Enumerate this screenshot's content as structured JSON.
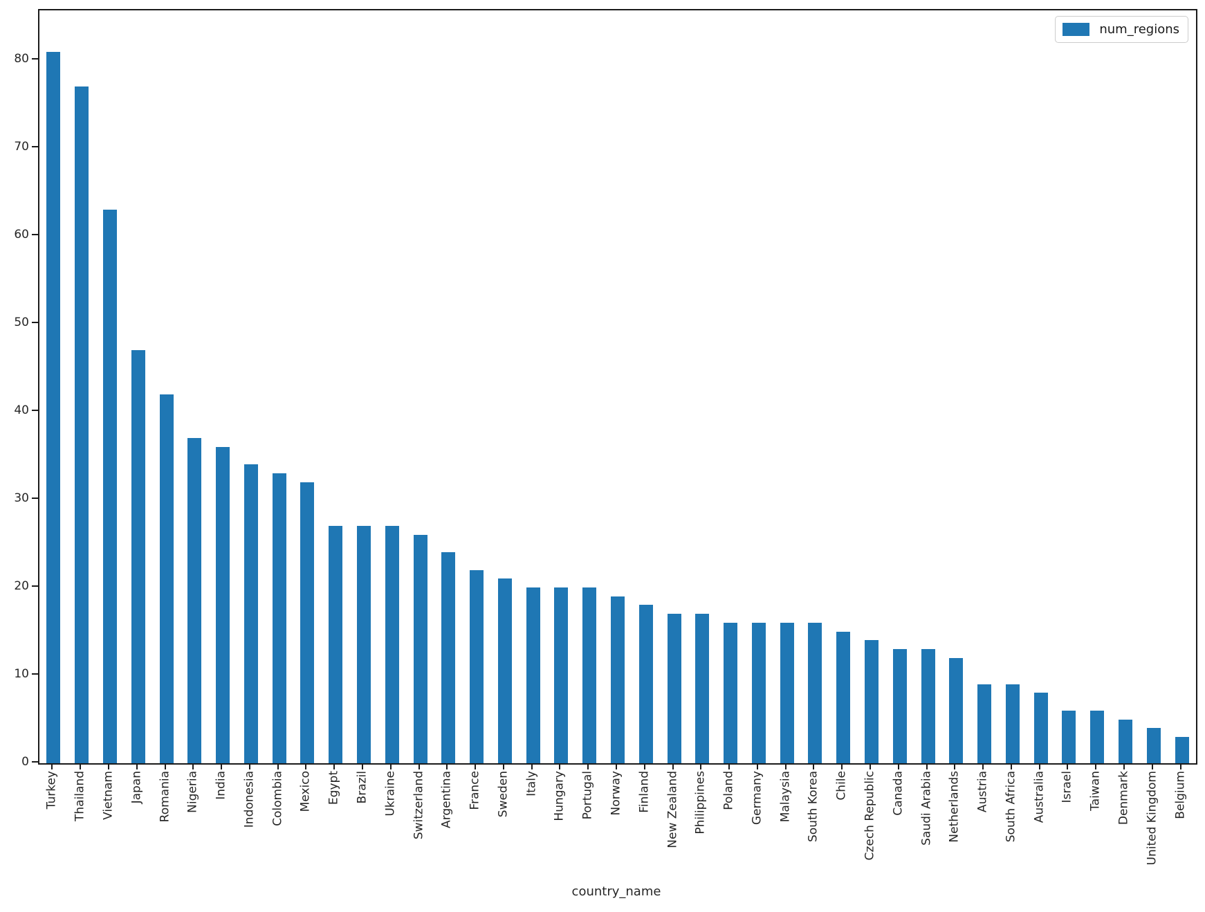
{
  "chart_data": {
    "type": "bar",
    "title": "",
    "xlabel": "country_name",
    "ylabel": "",
    "legend_label": "num_regions",
    "legend_position": "upper right",
    "grid": false,
    "bar_color": "#1f77b4",
    "ylim": [
      0,
      85.7
    ],
    "yticks": [
      0,
      10,
      20,
      30,
      40,
      50,
      60,
      70,
      80
    ],
    "categories": [
      "Turkey",
      "Thailand",
      "Vietnam",
      "Japan",
      "Romania",
      "Nigeria",
      "India",
      "Indonesia",
      "Colombia",
      "Mexico",
      "Egypt",
      "Brazil",
      "Ukraine",
      "Switzerland",
      "Argentina",
      "France",
      "Sweden",
      "Italy",
      "Hungary",
      "Portugal",
      "Norway",
      "Finland",
      "New Zealand",
      "Philippines",
      "Poland",
      "Germany",
      "Malaysia",
      "South Korea",
      "Chile",
      "Czech Republic",
      "Canada",
      "Saudi Arabia",
      "Netherlands",
      "Austria",
      "South Africa",
      "Australia",
      "Israel",
      "Taiwan",
      "Denmark",
      "United Kingdom",
      "Belgium"
    ],
    "values": [
      81,
      77,
      63,
      47,
      42,
      37,
      36,
      34,
      33,
      32,
      27,
      27,
      27,
      26,
      24,
      22,
      21,
      20,
      20,
      20,
      19,
      18,
      17,
      17,
      16,
      16,
      16,
      16,
      15,
      14,
      13,
      13,
      12,
      9,
      9,
      8,
      6,
      6,
      5,
      4,
      3
    ]
  }
}
